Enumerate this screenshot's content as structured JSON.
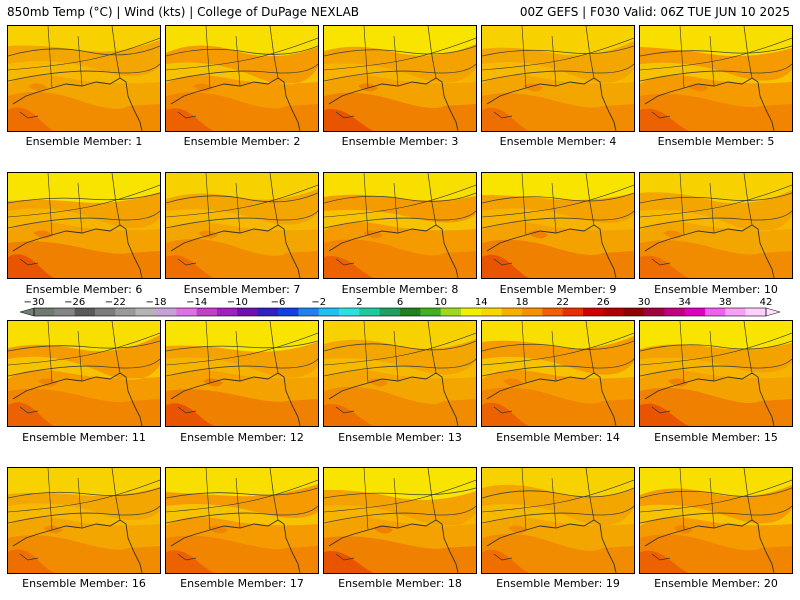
{
  "header": {
    "title_left": "850mb Temp (°C) | Wind (kts) | College of DuPage NEXLAB",
    "title_right": "00Z GEFS | F030 Valid: 06Z TUE JUN 10 2025"
  },
  "members": [
    {
      "label": "Ensemble Member: 1"
    },
    {
      "label": "Ensemble Member: 2"
    },
    {
      "label": "Ensemble Member: 3"
    },
    {
      "label": "Ensemble Member: 4"
    },
    {
      "label": "Ensemble Member: 5"
    },
    {
      "label": "Ensemble Member: 6"
    },
    {
      "label": "Ensemble Member: 7"
    },
    {
      "label": "Ensemble Member: 8"
    },
    {
      "label": "Ensemble Member: 9"
    },
    {
      "label": "Ensemble Member: 10"
    },
    {
      "label": "Ensemble Member: 11"
    },
    {
      "label": "Ensemble Member: 12"
    },
    {
      "label": "Ensemble Member: 13"
    },
    {
      "label": "Ensemble Member: 14"
    },
    {
      "label": "Ensemble Member: 15"
    },
    {
      "label": "Ensemble Member: 16"
    },
    {
      "label": "Ensemble Member: 17"
    },
    {
      "label": "Ensemble Member: 18"
    },
    {
      "label": "Ensemble Member: 19"
    },
    {
      "label": "Ensemble Member: 20"
    }
  ],
  "colorbar": {
    "tick_labels": [
      "−30",
      "−26",
      "−22",
      "−18",
      "−14",
      "−10",
      "−6",
      "−2",
      "2",
      "6",
      "10",
      "14",
      "18",
      "22",
      "26",
      "30",
      "34",
      "38",
      "42"
    ],
    "colors": [
      "#6e7b6e",
      "#848484",
      "#5a5a5a",
      "#7c7c7c",
      "#9a9a9a",
      "#b4b4b4",
      "#c8a0d8",
      "#e070e8",
      "#c040c8",
      "#a020c0",
      "#7010b0",
      "#3020c0",
      "#1040e0",
      "#2080f0",
      "#20c0f0",
      "#30e0e0",
      "#20c8a0",
      "#20a060",
      "#208020",
      "#40b020",
      "#a0d820",
      "#f0f000",
      "#f8d800",
      "#f8b000",
      "#f89000",
      "#f06000",
      "#e83000",
      "#d00000",
      "#b00000",
      "#900000",
      "#a00040",
      "#c00080",
      "#e000c0",
      "#f060f0",
      "#f8a0f8",
      "#ffd0ff"
    ]
  }
}
